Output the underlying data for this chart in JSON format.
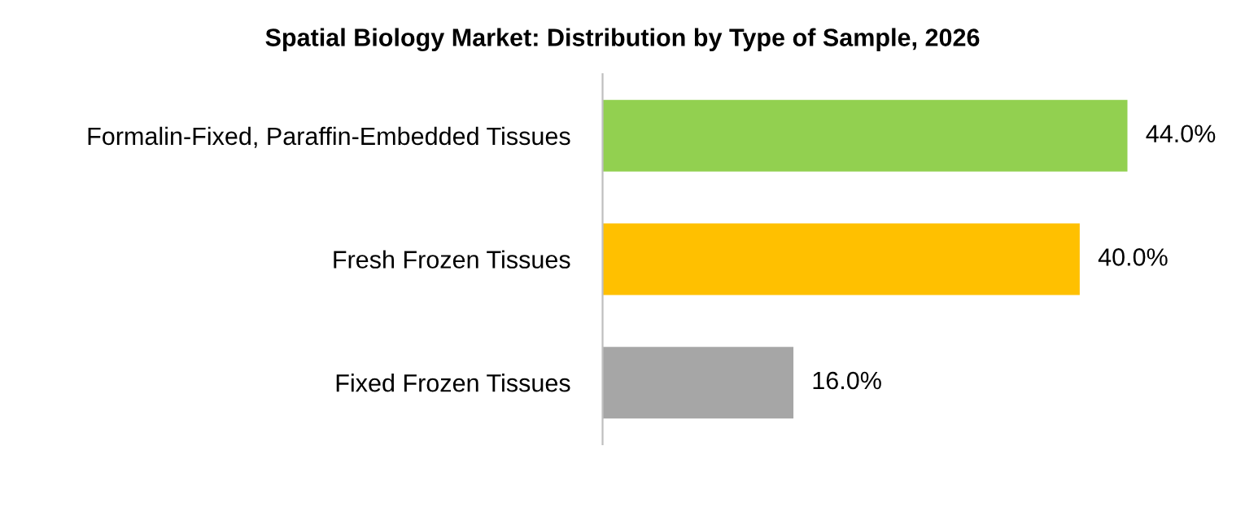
{
  "chart_data": {
    "type": "bar",
    "orientation": "horizontal",
    "title": "Spatial Biology Market: Distribution by Type of Sample, 2026",
    "categories": [
      "Formalin-Fixed, Paraffin-Embedded Tissues",
      "Fresh Frozen Tissues",
      "Fixed Frozen Tissues"
    ],
    "values": [
      44.0,
      40.0,
      16.0
    ],
    "colors": [
      "#92d050",
      "#ffc000",
      "#a6a6a6"
    ],
    "value_labels": [
      "44.0%",
      "40.0%",
      "16.0%"
    ],
    "grid": false,
    "legend": false
  }
}
